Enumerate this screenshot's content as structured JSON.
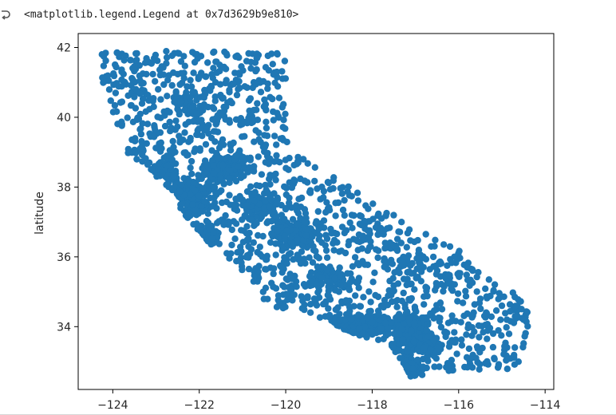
{
  "output": {
    "gutter_icon": "output-arrow-icon",
    "text": "<matplotlib.legend.Legend at 0x7d3629b9e810>"
  },
  "chart_data": {
    "type": "scatter",
    "title": "",
    "xlabel": "",
    "ylabel": "latitude",
    "xlim": [
      -124.8,
      -113.8
    ],
    "ylim": [
      32.2,
      42.4
    ],
    "xticks": [
      -124,
      -122,
      -120,
      -118,
      -116,
      -114
    ],
    "yticks": [
      34,
      36,
      38,
      40,
      42
    ],
    "xtick_labels": [
      "−124",
      "−122",
      "−120",
      "∘",
      "−116",
      "−114"
    ],
    "ytick_labels": [
      "34",
      "36",
      "38",
      "40",
      "42"
    ],
    "grid": false,
    "legend": "none visible",
    "marker_color": "#1f77b4",
    "series": [
      {
        "outline": [
          [
            -124.3,
            41.85
          ],
          [
            -124.2,
            40.6
          ],
          [
            -123.8,
            39.4
          ],
          [
            -123.7,
            38.9
          ],
          [
            -123.0,
            38.3
          ],
          [
            -122.5,
            37.7
          ],
          [
            -122.4,
            37.2
          ],
          [
            -121.9,
            36.6
          ],
          [
            -121.5,
            36.0
          ],
          [
            -121.0,
            35.6
          ],
          [
            -120.8,
            35.2
          ],
          [
            -120.6,
            34.7
          ],
          [
            -120.0,
            34.45
          ],
          [
            -119.3,
            34.3
          ],
          [
            -118.8,
            34.0
          ],
          [
            -118.3,
            33.75
          ],
          [
            -117.9,
            33.6
          ],
          [
            -117.5,
            33.3
          ],
          [
            -117.2,
            32.8
          ],
          [
            -117.1,
            32.55
          ],
          [
            -116.3,
            32.7
          ],
          [
            -115.5,
            32.75
          ],
          [
            -114.6,
            32.8
          ],
          [
            -114.5,
            33.5
          ],
          [
            -114.3,
            34.2
          ],
          [
            -114.6,
            34.9
          ],
          [
            -115.5,
            35.5
          ],
          [
            -116.0,
            36.2
          ],
          [
            -117.0,
            36.8
          ],
          [
            -118.0,
            37.6
          ],
          [
            -119.0,
            38.4
          ],
          [
            -119.8,
            39.0
          ],
          [
            -120.0,
            39.5
          ],
          [
            -120.0,
            41.9
          ],
          [
            -124.3,
            41.9
          ]
        ],
        "clusters": [
          {
            "lon": -118.25,
            "lat": 34.05,
            "rx": 0.75,
            "ry": 0.28,
            "n": 320
          },
          {
            "lon": -117.15,
            "lat": 32.85,
            "rx": 0.2,
            "ry": 0.35,
            "n": 120
          },
          {
            "lon": -117.2,
            "lat": 34.1,
            "rx": 0.5,
            "ry": 0.25,
            "n": 120
          },
          {
            "lon": -122.2,
            "lat": 37.7,
            "rx": 0.4,
            "ry": 0.5,
            "n": 200
          },
          {
            "lon": -121.4,
            "lat": 38.6,
            "rx": 0.45,
            "ry": 0.4,
            "n": 150
          },
          {
            "lon": -119.8,
            "lat": 36.7,
            "rx": 0.5,
            "ry": 0.4,
            "n": 110
          },
          {
            "lon": -121.8,
            "lat": 36.6,
            "rx": 0.3,
            "ry": 0.25,
            "n": 60
          },
          {
            "lon": -119.0,
            "lat": 35.4,
            "rx": 0.4,
            "ry": 0.3,
            "n": 60
          },
          {
            "lon": -120.6,
            "lat": 37.5,
            "rx": 0.5,
            "ry": 0.4,
            "n": 90
          },
          {
            "lon": -122.8,
            "lat": 38.4,
            "rx": 0.3,
            "ry": 0.3,
            "n": 60
          },
          {
            "lon": -122.3,
            "lat": 40.4,
            "rx": 0.35,
            "ry": 0.35,
            "n": 40
          },
          {
            "lon": -117.0,
            "lat": 33.6,
            "rx": 0.5,
            "ry": 0.35,
            "n": 90
          }
        ],
        "outliers": [
          [
            -124.25,
            41.8
          ],
          [
            -123.9,
            41.85
          ],
          [
            -117.7,
            36.4
          ],
          [
            -116.1,
            36.0
          ],
          [
            -115.8,
            35.7
          ],
          [
            -115.0,
            34.6
          ],
          [
            -114.5,
            34.2
          ],
          [
            -114.7,
            34.85
          ],
          [
            -116.2,
            32.9
          ],
          [
            -115.6,
            33.1
          ],
          [
            -115.2,
            33.8
          ],
          [
            -114.7,
            33.4
          ]
        ]
      }
    ]
  }
}
